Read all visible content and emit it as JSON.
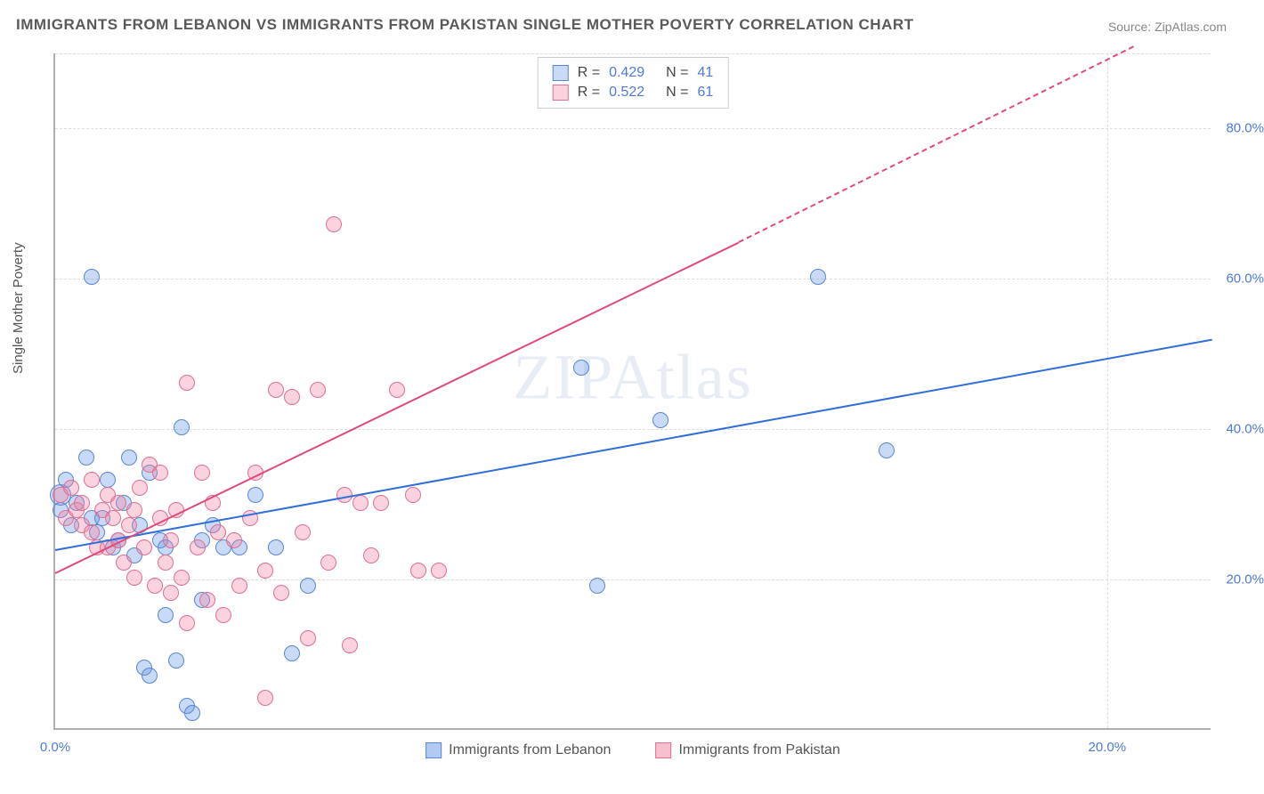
{
  "title": "IMMIGRANTS FROM LEBANON VS IMMIGRANTS FROM PAKISTAN SINGLE MOTHER POVERTY CORRELATION CHART",
  "source": "Source: ZipAtlas.com",
  "watermark": "ZIPAtlas",
  "y_axis_label": "Single Mother Poverty",
  "chart": {
    "type": "scatter",
    "background_color": "#ffffff",
    "grid_color": "#dddddd",
    "axis_color": "#b0b0b0",
    "tick_label_color": "#4d7bd6",
    "tick_fontsize": 15,
    "title_fontsize": 17,
    "title_color": "#5a5a5a",
    "xlim": [
      0,
      22
    ],
    "ylim": [
      0,
      90
    ],
    "x_ticks": [
      {
        "v": 0,
        "label": "0.0%"
      },
      {
        "v": 20,
        "label": "20.0%"
      }
    ],
    "y_ticks": [
      {
        "v": 20,
        "label": "20.0%"
      },
      {
        "v": 40,
        "label": "40.0%"
      },
      {
        "v": 60,
        "label": "60.0%"
      },
      {
        "v": 80,
        "label": "80.0%"
      }
    ],
    "marker_radius": 9,
    "marker_opacity": 0.55,
    "series": [
      {
        "name": "Immigrants from Lebanon",
        "color_fill": "rgba(100,150,230,0.35)",
        "color_stroke": "#5b86d1",
        "R": "0.429",
        "N": "41",
        "trend": {
          "x1": 0,
          "y1": 24,
          "x2": 22,
          "y2": 52,
          "dash_from_x": 22,
          "color": "#2f6ed9"
        },
        "points": [
          {
            "x": 0.1,
            "y": 31,
            "r": 12
          },
          {
            "x": 0.1,
            "y": 29
          },
          {
            "x": 0.2,
            "y": 33
          },
          {
            "x": 0.3,
            "y": 27
          },
          {
            "x": 0.4,
            "y": 30
          },
          {
            "x": 0.6,
            "y": 36
          },
          {
            "x": 0.7,
            "y": 60
          },
          {
            "x": 0.7,
            "y": 28
          },
          {
            "x": 0.8,
            "y": 26
          },
          {
            "x": 0.9,
            "y": 28
          },
          {
            "x": 1.0,
            "y": 33
          },
          {
            "x": 1.1,
            "y": 24
          },
          {
            "x": 1.2,
            "y": 25
          },
          {
            "x": 1.3,
            "y": 30
          },
          {
            "x": 1.5,
            "y": 23
          },
          {
            "x": 1.6,
            "y": 27
          },
          {
            "x": 1.7,
            "y": 8
          },
          {
            "x": 1.8,
            "y": 34
          },
          {
            "x": 1.8,
            "y": 7
          },
          {
            "x": 2.0,
            "y": 25
          },
          {
            "x": 2.1,
            "y": 15
          },
          {
            "x": 2.1,
            "y": 24
          },
          {
            "x": 2.3,
            "y": 9
          },
          {
            "x": 2.4,
            "y": 40
          },
          {
            "x": 2.5,
            "y": 3
          },
          {
            "x": 2.6,
            "y": 2
          },
          {
            "x": 2.8,
            "y": 25
          },
          {
            "x": 2.8,
            "y": 17
          },
          {
            "x": 3.0,
            "y": 27
          },
          {
            "x": 3.2,
            "y": 24
          },
          {
            "x": 3.5,
            "y": 24
          },
          {
            "x": 3.8,
            "y": 31
          },
          {
            "x": 4.2,
            "y": 24
          },
          {
            "x": 4.5,
            "y": 10
          },
          {
            "x": 4.8,
            "y": 19
          },
          {
            "x": 10.0,
            "y": 48
          },
          {
            "x": 10.3,
            "y": 19
          },
          {
            "x": 11.5,
            "y": 41
          },
          {
            "x": 14.5,
            "y": 60
          },
          {
            "x": 15.8,
            "y": 37
          },
          {
            "x": 1.4,
            "y": 36
          }
        ]
      },
      {
        "name": "Immigrants from Pakistan",
        "color_fill": "rgba(240,130,160,0.35)",
        "color_stroke": "#e06f92",
        "R": "0.522",
        "N": "61",
        "trend": {
          "x1": 0,
          "y1": 21,
          "x2": 13,
          "y2": 65,
          "dash_from_x": 13,
          "dash_to_x": 20.5,
          "dash_to_y": 91,
          "color": "#e14a7a"
        },
        "points": [
          {
            "x": 0.1,
            "y": 31
          },
          {
            "x": 0.2,
            "y": 28
          },
          {
            "x": 0.3,
            "y": 32
          },
          {
            "x": 0.4,
            "y": 29
          },
          {
            "x": 0.5,
            "y": 27
          },
          {
            "x": 0.5,
            "y": 30
          },
          {
            "x": 0.7,
            "y": 26
          },
          {
            "x": 0.7,
            "y": 33
          },
          {
            "x": 0.8,
            "y": 24
          },
          {
            "x": 0.9,
            "y": 29
          },
          {
            "x": 1.0,
            "y": 31
          },
          {
            "x": 1.0,
            "y": 24
          },
          {
            "x": 1.1,
            "y": 28
          },
          {
            "x": 1.2,
            "y": 30
          },
          {
            "x": 1.2,
            "y": 25
          },
          {
            "x": 1.3,
            "y": 22
          },
          {
            "x": 1.4,
            "y": 27
          },
          {
            "x": 1.5,
            "y": 29
          },
          {
            "x": 1.5,
            "y": 20
          },
          {
            "x": 1.6,
            "y": 32
          },
          {
            "x": 1.7,
            "y": 24
          },
          {
            "x": 1.8,
            "y": 35
          },
          {
            "x": 1.9,
            "y": 19
          },
          {
            "x": 2.0,
            "y": 28
          },
          {
            "x": 2.0,
            "y": 34
          },
          {
            "x": 2.1,
            "y": 22
          },
          {
            "x": 2.2,
            "y": 25
          },
          {
            "x": 2.2,
            "y": 18
          },
          {
            "x": 2.3,
            "y": 29
          },
          {
            "x": 2.4,
            "y": 20
          },
          {
            "x": 2.5,
            "y": 46
          },
          {
            "x": 2.5,
            "y": 14
          },
          {
            "x": 2.7,
            "y": 24
          },
          {
            "x": 2.8,
            "y": 34
          },
          {
            "x": 2.9,
            "y": 17
          },
          {
            "x": 3.0,
            "y": 30
          },
          {
            "x": 3.1,
            "y": 26
          },
          {
            "x": 3.2,
            "y": 15
          },
          {
            "x": 3.4,
            "y": 25
          },
          {
            "x": 3.5,
            "y": 19
          },
          {
            "x": 3.7,
            "y": 28
          },
          {
            "x": 3.8,
            "y": 34
          },
          {
            "x": 4.0,
            "y": 21
          },
          {
            "x": 4.0,
            "y": 4
          },
          {
            "x": 4.2,
            "y": 45
          },
          {
            "x": 4.3,
            "y": 18
          },
          {
            "x": 4.5,
            "y": 44
          },
          {
            "x": 4.7,
            "y": 26
          },
          {
            "x": 4.8,
            "y": 12
          },
          {
            "x": 5.0,
            "y": 45
          },
          {
            "x": 5.2,
            "y": 22
          },
          {
            "x": 5.3,
            "y": 67
          },
          {
            "x": 5.5,
            "y": 31
          },
          {
            "x": 5.6,
            "y": 11
          },
          {
            "x": 5.8,
            "y": 30
          },
          {
            "x": 6.0,
            "y": 23
          },
          {
            "x": 6.2,
            "y": 30
          },
          {
            "x": 6.5,
            "y": 45
          },
          {
            "x": 6.9,
            "y": 21
          },
          {
            "x": 7.3,
            "y": 21
          },
          {
            "x": 6.8,
            "y": 31
          }
        ]
      }
    ]
  },
  "bottom_legend": [
    {
      "label": "Immigrants from Lebanon",
      "fill": "rgba(100,150,230,0.5)",
      "stroke": "#5b86d1"
    },
    {
      "label": "Immigrants from Pakistan",
      "fill": "rgba(240,130,160,0.5)",
      "stroke": "#e06f92"
    }
  ]
}
